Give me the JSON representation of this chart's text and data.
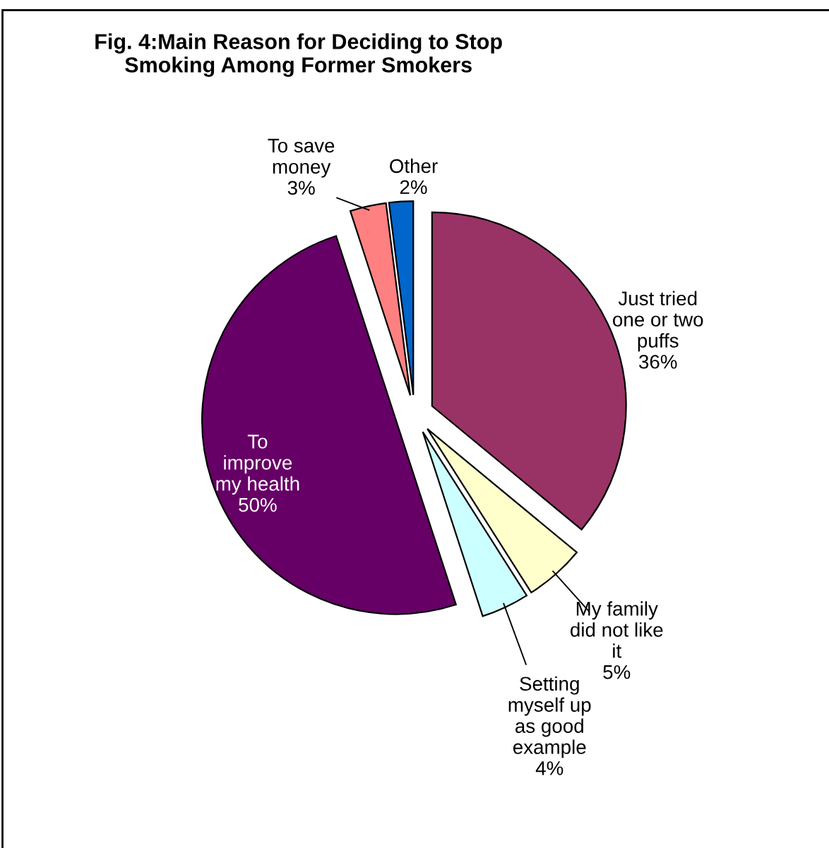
{
  "chart_data": {
    "type": "pie",
    "title": "Fig. 4:Main Reason for Deciding to Stop\nSmoking Among Former Smokers",
    "categories": [
      "Just tried\none or two\npuffs",
      "My family\ndid not like\nit",
      "Setting\nmyself up\nas good\nexample",
      "To\nimprove\nmy health",
      "To save\nmoney",
      "Other"
    ],
    "values": [
      36,
      5,
      4,
      50,
      3,
      2
    ],
    "value_labels": [
      "36%",
      "5%",
      "4%",
      "50%",
      "3%",
      "2%"
    ],
    "colors": [
      "#993366",
      "#ffffcc",
      "#ccffff",
      "#660066",
      "#ff8080",
      "#0066cc"
    ]
  }
}
